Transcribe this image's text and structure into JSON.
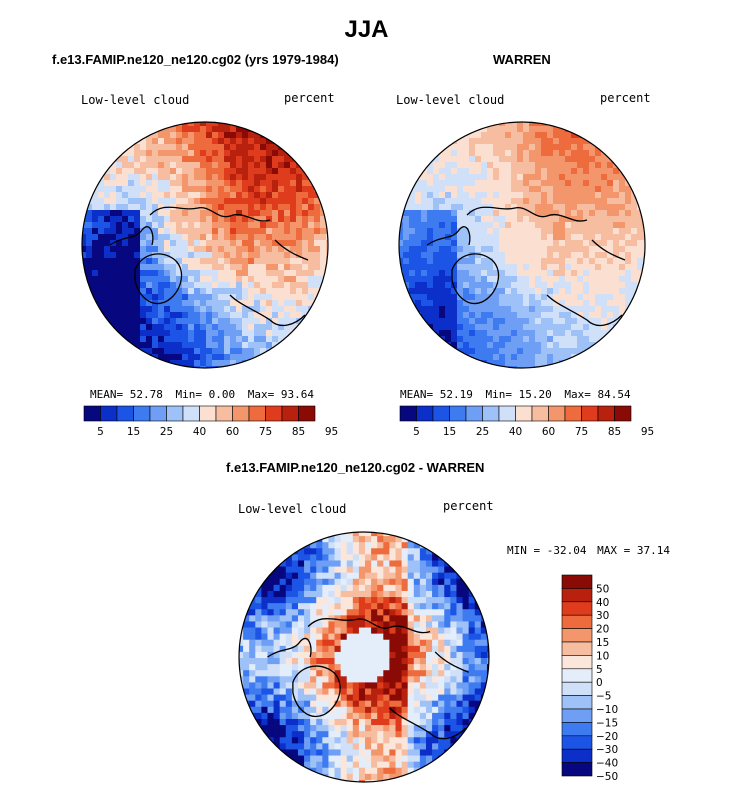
{
  "figure": {
    "season": "JJA"
  },
  "colors": {
    "absolute": [
      "#07077f",
      "#0b2fc8",
      "#1c55e6",
      "#3f7bf0",
      "#6f9ff4",
      "#9ec2f7",
      "#cfe0f8",
      "#fbe0d2",
      "#f7bda0",
      "#f3966c",
      "#ee6b3d",
      "#de3c1c",
      "#b7210e",
      "#8a0a06"
    ],
    "difference": [
      "#07077f",
      "#0b2fc8",
      "#1c55e6",
      "#3f7bf0",
      "#6f9ff4",
      "#9ec2f7",
      "#cfe0f8",
      "#e4edfa",
      "#fbe6dc",
      "#f7bda0",
      "#f3966c",
      "#ee6b3d",
      "#de3c1c",
      "#b7210e",
      "#8a0a06"
    ]
  },
  "panels": {
    "model": {
      "title": "f.e13.FAMIP.ne120_ne120.cg02 (yrs 1979-1984)",
      "variable": "Low-level cloud",
      "units": "percent",
      "mean_label": "MEAN=",
      "mean": "52.78",
      "min_label": "Min=",
      "min": "0.00",
      "max_label": "Max=",
      "max": "93.64",
      "colorbar_ticks": [
        "5",
        "15",
        "25",
        "40",
        "60",
        "75",
        "85",
        "95"
      ]
    },
    "obs": {
      "title": "WARREN",
      "variable": "Low-level cloud",
      "units": "percent",
      "mean_label": "MEAN=",
      "mean": "52.19",
      "min_label": "Min=",
      "min": "15.20",
      "max_label": "Max=",
      "max": "84.54",
      "colorbar_ticks": [
        "5",
        "15",
        "25",
        "40",
        "60",
        "75",
        "85",
        "95"
      ]
    },
    "diff": {
      "title": "f.e13.FAMIP.ne120_ne120.cg02 - WARREN",
      "variable": "Low-level cloud",
      "units": "percent",
      "min_label": "MIN =",
      "min": "-32.04",
      "max_label": "MAX =",
      "max": "37.14",
      "colorbar_ticks": [
        "50",
        "40",
        "30",
        "20",
        "15",
        "10",
        "5",
        "0",
        "−5",
        "−10",
        "−15",
        "−20",
        "−30",
        "−40",
        "−50"
      ]
    }
  },
  "chart_data": [
    {
      "type": "heatmap",
      "projection": "polar stereographic (Arctic)",
      "title": "f.e13.FAMIP.ne120_ne120.cg02 (yrs 1979-1984)",
      "field": "Low-level cloud",
      "units": "percent",
      "season": "JJA",
      "summary": {
        "mean": 52.78,
        "min": 0.0,
        "max": 93.64
      },
      "colorbar_levels": [
        5,
        10,
        15,
        20,
        25,
        30,
        40,
        50,
        60,
        65,
        75,
        80,
        85,
        90,
        95
      ],
      "colorbar_labels": [
        5,
        15,
        25,
        40,
        60,
        75,
        85,
        95
      ]
    },
    {
      "type": "heatmap",
      "projection": "polar stereographic (Arctic)",
      "title": "WARREN",
      "field": "Low-level cloud",
      "units": "percent",
      "season": "JJA",
      "summary": {
        "mean": 52.19,
        "min": 15.2,
        "max": 84.54
      },
      "colorbar_levels": [
        5,
        10,
        15,
        20,
        25,
        30,
        40,
        50,
        60,
        65,
        75,
        80,
        85,
        90,
        95
      ],
      "colorbar_labels": [
        5,
        15,
        25,
        40,
        60,
        75,
        85,
        95
      ]
    },
    {
      "type": "heatmap",
      "projection": "polar stereographic (Arctic)",
      "title": "f.e13.FAMIP.ne120_ne120.cg02 - WARREN",
      "field": "Low-level cloud",
      "units": "percent",
      "season": "JJA",
      "summary": {
        "min": -32.04,
        "max": 37.14
      },
      "colorbar_levels": [
        -50,
        -40,
        -30,
        -20,
        -15,
        -10,
        -5,
        0,
        5,
        10,
        15,
        20,
        30,
        40,
        50
      ],
      "colorbar_labels": [
        50,
        40,
        30,
        20,
        15,
        10,
        5,
        0,
        -5,
        -10,
        -15,
        -20,
        -30,
        -40,
        -50
      ]
    }
  ]
}
